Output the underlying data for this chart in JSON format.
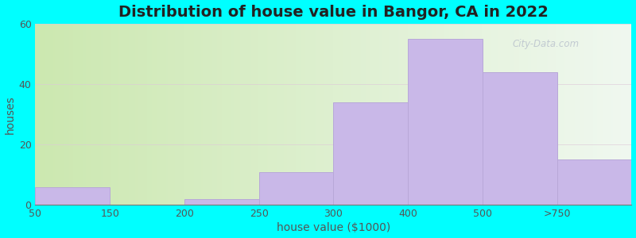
{
  "title": "Distribution of house value in Bangor, CA in 2022",
  "xlabel": "house value ($1000)",
  "ylabel": "houses",
  "background_color": "#00FFFF",
  "bar_color": "#c9b8e8",
  "bar_edge_color": "#b8a8d8",
  "watermark_text": "City-Data.com",
  "categories": [
    "50",
    "150",
    "200",
    "250",
    "300",
    "400",
    "500",
    ">750"
  ],
  "values": [
    6,
    0,
    2,
    11,
    34,
    55,
    44,
    15
  ],
  "bar_lefts": [
    0,
    1,
    2,
    3,
    4,
    5,
    6,
    7
  ],
  "bar_rights": [
    1,
    2,
    3,
    4,
    5,
    6,
    7,
    8
  ],
  "xlim": [
    0,
    8
  ],
  "ylim": [
    0,
    60
  ],
  "yticks": [
    0,
    20,
    40,
    60
  ],
  "title_fontsize": 14,
  "axis_label_fontsize": 10,
  "tick_fontsize": 9,
  "grad_left_color": "#cce8b0",
  "grad_right_color": "#f0f8f0",
  "grad_top_color": "#e8f8e8",
  "watermark_color": "#b0b8c8",
  "watermark_alpha": 0.7,
  "grid_color": "#ddc8d8",
  "grid_alpha": 0.6
}
